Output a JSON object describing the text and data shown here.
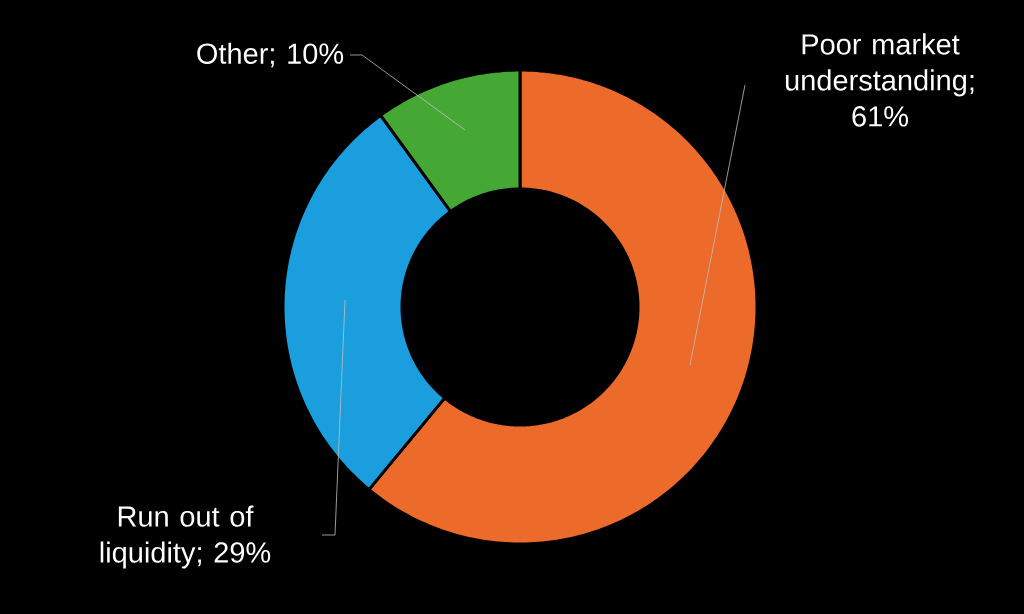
{
  "chart_data": {
    "type": "donut",
    "categories": [
      "Poor market understanding",
      "Run out of liquidity",
      "Other"
    ],
    "values": [
      61,
      29,
      10
    ],
    "value_labels": [
      "; 61%",
      "; 29%",
      "; 10%"
    ],
    "colors": [
      "#ec6a2a",
      "#1a9ede",
      "#46a834"
    ]
  }
}
